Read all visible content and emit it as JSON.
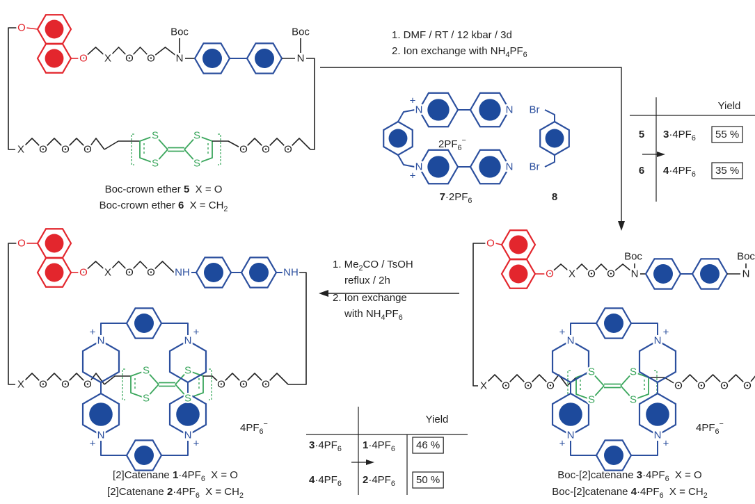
{
  "boc_crown_ether": {
    "atoms": [
      "O",
      "O",
      "X",
      "O",
      "O",
      "N",
      "Boc",
      "N",
      "Boc",
      "X",
      "O",
      "O",
      "O",
      "S",
      "S",
      "S",
      "S",
      "O",
      "O",
      "O"
    ],
    "captions": [
      [
        {
          "text": "Boc-crown ether "
        },
        {
          "text": "5",
          "style": "bold"
        },
        {
          "text": "  X = O"
        }
      ],
      [
        {
          "text": "Boc-crown ether "
        },
        {
          "text": "6",
          "style": "bold"
        },
        {
          "text": "  X = CH"
        },
        {
          "text": "2",
          "style": "sub"
        }
      ]
    ]
  },
  "conditions_1": [
    [
      {
        "text": "1. DMF / RT / 12 kbar / 3d"
      }
    ],
    [
      {
        "text": "2. Ion exchange with NH"
      },
      {
        "text": "4",
        "style": "sub"
      },
      {
        "text": "PF"
      },
      {
        "text": "6",
        "style": "sub"
      }
    ]
  ],
  "reagents": {
    "atoms": [
      "N",
      "+",
      "N",
      "N",
      "+",
      "N",
      "Br",
      "Br"
    ],
    "counterion": [
      {
        "text": "2PF"
      },
      {
        "text": "6",
        "style": "sub"
      },
      {
        "text": "−",
        "style": "sup"
      }
    ],
    "labels": [
      [
        {
          "text": "7",
          "style": "bold"
        },
        {
          "text": "·2PF"
        },
        {
          "text": "6",
          "style": "sub"
        }
      ],
      [
        {
          "text": "8",
          "style": "bold"
        }
      ]
    ]
  },
  "yield_table_1": {
    "header": "Yield",
    "rows": [
      {
        "reactant": [
          {
            "text": "5",
            "style": "bold"
          }
        ],
        "product": [
          {
            "text": "3",
            "style": "bold"
          },
          {
            "text": "·4PF"
          },
          {
            "text": "6",
            "style": "sub"
          }
        ],
        "yield": "55 %"
      },
      {
        "reactant": [
          {
            "text": "6",
            "style": "bold"
          }
        ],
        "product": [
          {
            "text": "4",
            "style": "bold"
          },
          {
            "text": "·4PF"
          },
          {
            "text": "6",
            "style": "sub"
          }
        ],
        "yield": "35 %"
      }
    ]
  },
  "conditions_2": [
    [
      {
        "text": "1. Me"
      },
      {
        "text": "2",
        "style": "sub"
      },
      {
        "text": "CO / TsOH"
      }
    ],
    [
      {
        "text": "reflux / 2h"
      }
    ],
    [
      {
        "text": "2. Ion exchange"
      }
    ],
    [
      {
        "text": "with NH"
      },
      {
        "text": "4",
        "style": "sub"
      },
      {
        "text": "PF"
      },
      {
        "text": "6",
        "style": "sub"
      }
    ]
  ],
  "yield_table_2": {
    "header": "Yield",
    "rows": [
      {
        "reactant": [
          {
            "text": "3",
            "style": "bold"
          },
          {
            "text": "·4PF"
          },
          {
            "text": "6",
            "style": "sub"
          }
        ],
        "product": [
          {
            "text": "1",
            "style": "bold"
          },
          {
            "text": "·4PF"
          },
          {
            "text": "6",
            "style": "sub"
          }
        ],
        "yield": "46 %"
      },
      {
        "reactant": [
          {
            "text": "4",
            "style": "bold"
          },
          {
            "text": "·4PF"
          },
          {
            "text": "6",
            "style": "sub"
          }
        ],
        "product": [
          {
            "text": "2",
            "style": "bold"
          },
          {
            "text": "·4PF"
          },
          {
            "text": "6",
            "style": "sub"
          }
        ],
        "yield": "50 %"
      }
    ]
  },
  "catenane": {
    "atoms": [
      "O",
      "O",
      "X",
      "O",
      "O",
      "NH",
      "NH",
      "X",
      "O",
      "O",
      "O",
      "S",
      "S",
      "S",
      "S",
      "O",
      "O",
      "O",
      "N",
      "+",
      "N",
      "+",
      "N",
      "+",
      "N",
      "+"
    ],
    "counterion": [
      {
        "text": "4PF"
      },
      {
        "text": "6",
        "style": "sub"
      },
      {
        "text": "−",
        "style": "sup"
      }
    ],
    "captions": [
      [
        {
          "text": "[2]Catenane "
        },
        {
          "text": "1",
          "style": "bold"
        },
        {
          "text": "·4PF"
        },
        {
          "text": "6",
          "style": "sub"
        },
        {
          "text": "  X = O"
        }
      ],
      [
        {
          "text": "[2]Catenane "
        },
        {
          "text": "2",
          "style": "bold"
        },
        {
          "text": "·4PF"
        },
        {
          "text": "6",
          "style": "sub"
        },
        {
          "text": "  X = CH"
        },
        {
          "text": "2",
          "style": "sub"
        }
      ]
    ]
  },
  "boc_catenane": {
    "atoms": [
      "O",
      "O",
      "X",
      "O",
      "O",
      "N",
      "Boc",
      "N",
      "Boc",
      "X",
      "O",
      "O",
      "O",
      "S",
      "S",
      "S",
      "S",
      "O",
      "O",
      "O",
      "O",
      "N",
      "+",
      "N",
      "+",
      "N",
      "+",
      "N",
      "+"
    ],
    "counterion": [
      {
        "text": "4PF"
      },
      {
        "text": "6",
        "style": "sub"
      },
      {
        "text": "−",
        "style": "sup"
      }
    ],
    "captions": [
      [
        {
          "text": "Boc-[2]catenane "
        },
        {
          "text": "3",
          "style": "bold"
        },
        {
          "text": "·4PF"
        },
        {
          "text": "6",
          "style": "sub"
        },
        {
          "text": "  X = O"
        }
      ],
      [
        {
          "text": "Boc-[2]catenane "
        },
        {
          "text": "4",
          "style": "bold"
        },
        {
          "text": "·4PF"
        },
        {
          "text": "6",
          "style": "sub"
        },
        {
          "text": "  X = CH"
        },
        {
          "text": "2",
          "style": "sub"
        }
      ]
    ]
  }
}
